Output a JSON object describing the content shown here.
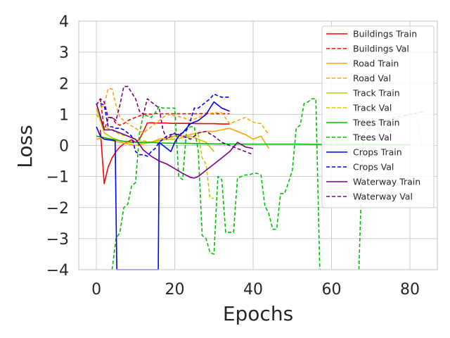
{
  "chart_data": {
    "type": "line",
    "xlabel": "Epochs",
    "ylabel": "Loss",
    "xlim": [
      -4.5,
      87
    ],
    "ylim": [
      -4,
      4
    ],
    "xticks": [
      0,
      20,
      40,
      60,
      80
    ],
    "yticks": [
      -4,
      -3,
      -2,
      -1,
      0,
      1,
      2,
      3,
      4
    ],
    "xtick_labels": [
      "0",
      "20",
      "40",
      "60",
      "80"
    ],
    "ytick_labels": [
      "−4",
      "−3",
      "−2",
      "−1",
      "0",
      "1",
      "2",
      "3",
      "4"
    ],
    "grid": true,
    "legend_position": "top-right",
    "series": [
      {
        "name": "Buildings Train",
        "color": "#ff0000",
        "dash": "solid",
        "x": [
          1,
          2,
          3,
          4,
          5,
          6,
          7,
          8,
          9,
          10,
          11,
          12,
          13,
          14,
          15,
          16,
          17,
          18,
          19,
          20,
          22,
          24,
          26,
          28,
          30,
          32,
          34
        ],
        "y": [
          0.5,
          -1.23,
          -0.7,
          -0.4,
          -0.2,
          -0.05,
          0.05,
          0.12,
          0.18,
          0.1,
          0.2,
          0.45,
          0.72,
          0.73,
          0.72,
          0.72,
          0.72,
          0.72,
          0.71,
          0.71,
          0.71,
          0.71,
          0.7,
          0.7,
          0.7,
          0.69,
          0.69
        ]
      },
      {
        "name": "Buildings Val",
        "color": "#ff0000",
        "dash": "dashed",
        "x": [
          1,
          2,
          3,
          4,
          5,
          6,
          7,
          8,
          9,
          10,
          11,
          12,
          13,
          14,
          15,
          16,
          17,
          18,
          19,
          20,
          22,
          24,
          26,
          28,
          30,
          32,
          34
        ],
        "y": [
          1.5,
          0.5,
          0.85,
          0.9,
          0.7,
          0.65,
          0.7,
          0.8,
          0.85,
          0.9,
          0.95,
          1.0,
          1.02,
          1.0,
          1.03,
          1.02,
          1.02,
          1.02,
          1.02,
          1.02,
          1.02,
          1.02,
          1.02,
          1.03,
          1.02,
          1.02,
          1.02
        ]
      },
      {
        "name": "Road Train",
        "color": "#ffa500",
        "dash": "solid",
        "x": [
          0,
          2,
          4,
          6,
          8,
          10,
          12,
          14,
          16,
          18,
          20,
          22,
          24,
          26,
          28,
          30,
          32,
          34,
          36,
          38,
          40,
          42,
          44
        ],
        "y": [
          0.2,
          0.25,
          0.15,
          0.1,
          0.05,
          0.0,
          0.05,
          0.1,
          0.2,
          0.25,
          0.3,
          0.3,
          0.35,
          0.4,
          0.45,
          0.45,
          0.5,
          0.55,
          0.45,
          0.35,
          0.2,
          0.3,
          -0.1
        ]
      },
      {
        "name": "Road Val",
        "color": "#ffa500",
        "dash": "dashed",
        "x": [
          0,
          2,
          3,
          4,
          5,
          6,
          8,
          10,
          12,
          14,
          16,
          18,
          20,
          22,
          24,
          26,
          28,
          30,
          32,
          34,
          36,
          38,
          40,
          42,
          44
        ],
        "y": [
          1.1,
          1.3,
          1.82,
          1.82,
          1.3,
          0.9,
          0.7,
          0.55,
          0.4,
          0.6,
          0.8,
          1.0,
          0.95,
          0.9,
          0.8,
          0.9,
          1.0,
          1.05,
          1.05,
          0.7,
          0.8,
          0.9,
          0.75,
          0.7,
          0.35
        ]
      },
      {
        "name": "Track Train",
        "color": "#c8c800",
        "dash": "solid",
        "x": [
          0,
          2,
          4,
          6,
          8,
          10,
          12,
          14,
          16,
          18,
          20,
          22,
          24,
          26,
          28,
          30
        ],
        "y": [
          1.2,
          0.4,
          0.25,
          0.15,
          0.1,
          0.1,
          0.05,
          0.1,
          0.15,
          0.2,
          0.2,
          0.25,
          0.3,
          0.2,
          0.1,
          -0.2
        ]
      },
      {
        "name": "Track Val",
        "color": "#c8c800",
        "dash": "dashed",
        "x": [
          0,
          2,
          4,
          6,
          8,
          10,
          12,
          14,
          16,
          18,
          20,
          22,
          24,
          26,
          27,
          28,
          29,
          30
        ],
        "y": [
          1.0,
          0.6,
          0.5,
          0.35,
          0.3,
          0.2,
          0.15,
          0.1,
          0.15,
          0.2,
          0.3,
          0.25,
          0.25,
          0.35,
          -0.4,
          -0.6,
          -1.7,
          -1.7
        ]
      },
      {
        "name": "Trees Train",
        "color": "#00c000",
        "dash": "solid",
        "x": [
          0,
          2,
          4,
          6,
          8,
          10,
          12,
          14,
          16,
          20,
          30,
          40,
          50,
          60,
          70,
          80
        ],
        "y": [
          0.3,
          0.25,
          0.2,
          0.15,
          0.12,
          0.1,
          0.1,
          0.1,
          0.08,
          0.07,
          0.05,
          0.04,
          0.04,
          0.03,
          0.03,
          0.02
        ]
      },
      {
        "name": "Trees Val",
        "color": "#00c000",
        "dash": "dashed",
        "x": [
          4,
          5,
          6,
          7,
          8,
          9,
          10,
          11,
          12,
          13,
          14,
          15,
          16,
          17,
          18,
          19,
          20,
          21,
          22,
          23,
          24,
          25,
          26,
          27,
          28,
          29,
          30,
          31,
          32,
          33,
          34,
          35,
          36,
          37,
          38,
          39,
          40,
          41,
          42,
          43,
          44,
          45,
          46,
          47,
          48,
          49,
          50,
          51,
          52,
          53,
          54,
          55,
          56,
          57
        ],
        "y": [
          -4.0,
          -3.0,
          -2.8,
          -2.0,
          -1.9,
          -1.3,
          -1.2,
          0.4,
          1.0,
          0.95,
          0.9,
          1.05,
          1.25,
          1.2,
          1.2,
          1.2,
          1.2,
          -1.0,
          -1.1,
          0.5,
          0.6,
          0.6,
          -0.2,
          -2.9,
          -3.0,
          -3.45,
          -3.5,
          -1.0,
          -1.1,
          -2.8,
          -2.8,
          -2.8,
          -1.05,
          -1.0,
          -0.95,
          -0.95,
          -0.9,
          -0.9,
          -0.95,
          -1.95,
          -2.2,
          -2.7,
          -2.7,
          -1.55,
          -1.55,
          -1.2,
          -0.8,
          0.55,
          0.65,
          1.35,
          1.4,
          1.5,
          1.5,
          -4.0
        ]
      },
      {
        "name": "Crops Train",
        "color": "#0000ff",
        "dash": "solid",
        "x": [
          0,
          1,
          2,
          3,
          4,
          4.8,
          5.2,
          15.8,
          16,
          17,
          18,
          19,
          20,
          21,
          22,
          23,
          24,
          25,
          26,
          27,
          28,
          29,
          30,
          31,
          32,
          33,
          34
        ],
        "y": [
          0.6,
          0.3,
          0.2,
          0.18,
          0.17,
          0.15,
          -4.0,
          -4.0,
          0.1,
          0.0,
          -0.1,
          -0.2,
          0.1,
          0.3,
          0.4,
          0.55,
          0.7,
          0.75,
          0.8,
          0.9,
          1.0,
          1.2,
          1.4,
          1.3,
          1.2,
          1.15,
          1.1
        ]
      },
      {
        "name": "Crops Val",
        "color": "#0000ff",
        "dash": "dashed",
        "x": [
          1,
          2,
          3,
          4,
          5,
          6,
          7,
          8,
          9,
          10,
          11,
          12,
          13,
          14,
          15,
          16,
          17,
          18,
          19,
          20,
          21,
          22,
          23,
          24,
          25,
          26,
          27,
          28,
          29,
          30,
          31,
          32,
          33,
          34
        ],
        "y": [
          1.35,
          1.3,
          0.6,
          0.6,
          0.55,
          0.55,
          0.5,
          0.4,
          0.3,
          -0.2,
          -0.3,
          -0.3,
          -0.35,
          -0.2,
          -0.1,
          0.1,
          0.2,
          0.3,
          0.35,
          0.35,
          0.35,
          0.4,
          0.5,
          0.8,
          1.2,
          1.2,
          1.3,
          1.4,
          1.5,
          1.65,
          1.6,
          1.55,
          1.55,
          1.55
        ]
      },
      {
        "name": "Waterway Train",
        "color": "#800080",
        "dash": "solid",
        "x": [
          0,
          2,
          4,
          6,
          8,
          10,
          12,
          14,
          16,
          18,
          20,
          22,
          24,
          25,
          26,
          28,
          30,
          32,
          34,
          36,
          38,
          40
        ],
        "y": [
          1.35,
          0.5,
          0.5,
          0.4,
          0.3,
          0.2,
          -0.15,
          -0.35,
          -0.5,
          -0.6,
          -0.75,
          -0.9,
          -1.03,
          -1.05,
          -1.0,
          -0.8,
          -0.6,
          -0.4,
          -0.2,
          0.1,
          -0.05,
          -0.1
        ]
      },
      {
        "name": "Waterway Val",
        "color": "#800080",
        "dash": "dashed",
        "x": [
          0,
          1,
          2,
          3,
          4,
          5,
          6,
          7,
          8,
          9,
          10,
          11,
          12,
          13,
          14,
          15,
          16,
          17,
          18,
          19,
          20,
          22,
          24,
          26,
          28,
          30,
          32,
          34,
          36,
          38,
          40
        ],
        "y": [
          1.3,
          1.5,
          1.4,
          0.9,
          0.9,
          0.8,
          1.3,
          1.9,
          1.9,
          1.7,
          1.5,
          1.1,
          1.0,
          1.5,
          1.4,
          1.3,
          1.2,
          0.5,
          0.2,
          0.3,
          0.4,
          0.3,
          0.2,
          0.4,
          0.45,
          0.3,
          0.1,
          0.0,
          -0.1,
          -0.2,
          -0.3
        ]
      },
      {
        "name": "",
        "color": "#b9f5b9",
        "dash": "solid",
        "x": [
          60,
          62,
          64,
          66,
          68,
          70,
          72,
          74,
          76,
          78,
          80,
          82,
          83
        ],
        "y": [
          -0.05,
          0.2,
          0.1,
          0.4,
          0.3,
          0.35,
          0.5,
          0.6,
          0.7,
          0.9,
          1.0,
          0.8,
          -0.05
        ]
      },
      {
        "name": "",
        "color": "#00c000",
        "dash": "dashed",
        "x": [
          67,
          68,
          69,
          70,
          72,
          74,
          76,
          78,
          80,
          82,
          84
        ],
        "y": [
          -4.0,
          0.3,
          0.5,
          0.6,
          0.7,
          0.8,
          0.9,
          0.95,
          1.0,
          1.05,
          1.1
        ]
      }
    ]
  }
}
